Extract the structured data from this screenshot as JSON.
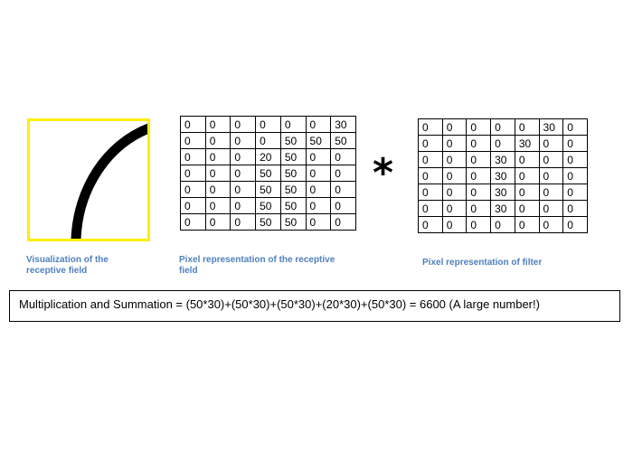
{
  "receptive_field": {
    "caption": "Visualization of the receptive field",
    "caption_lines": [
      "Visualization of the",
      "receptive field"
    ],
    "border_color": "#ffee00",
    "curve_color": "#000000"
  },
  "receptive_matrix": {
    "caption_lines": [
      "Pixel representation  of the receptive",
      "field"
    ],
    "rows": [
      [
        "0",
        "0",
        "0",
        "0",
        "0",
        "0",
        "30"
      ],
      [
        "0",
        "0",
        "0",
        "0",
        "50",
        "50",
        "50"
      ],
      [
        "0",
        "0",
        "0",
        "20",
        "50",
        "0",
        "0"
      ],
      [
        "0",
        "0",
        "0",
        "50",
        "50",
        "0",
        "0"
      ],
      [
        "0",
        "0",
        "0",
        "50",
        "50",
        "0",
        "0"
      ],
      [
        "0",
        "0",
        "0",
        "50",
        "50",
        "0",
        "0"
      ],
      [
        "0",
        "0",
        "0",
        "50",
        "50",
        "0",
        "0"
      ]
    ]
  },
  "operator": "*",
  "filter_matrix": {
    "caption": "Pixel representation  of filter",
    "rows": [
      [
        "0",
        "0",
        "0",
        "0",
        "0",
        "30",
        "0"
      ],
      [
        "0",
        "0",
        "0",
        "0",
        "30",
        "0",
        "0"
      ],
      [
        "0",
        "0",
        "0",
        "30",
        "0",
        "0",
        "0"
      ],
      [
        "0",
        "0",
        "0",
        "30",
        "0",
        "0",
        "0"
      ],
      [
        "0",
        "0",
        "0",
        "30",
        "0",
        "0",
        "0"
      ],
      [
        "0",
        "0",
        "0",
        "30",
        "0",
        "0",
        "0"
      ],
      [
        "0",
        "0",
        "0",
        "0",
        "0",
        "0",
        "0"
      ]
    ]
  },
  "formula": "Multiplication and Summation = (50*30)+(50*30)+(50*30)+(20*30)+(50*30) = 6600 (A large number!)",
  "colors": {
    "caption": "#4f81bd"
  }
}
